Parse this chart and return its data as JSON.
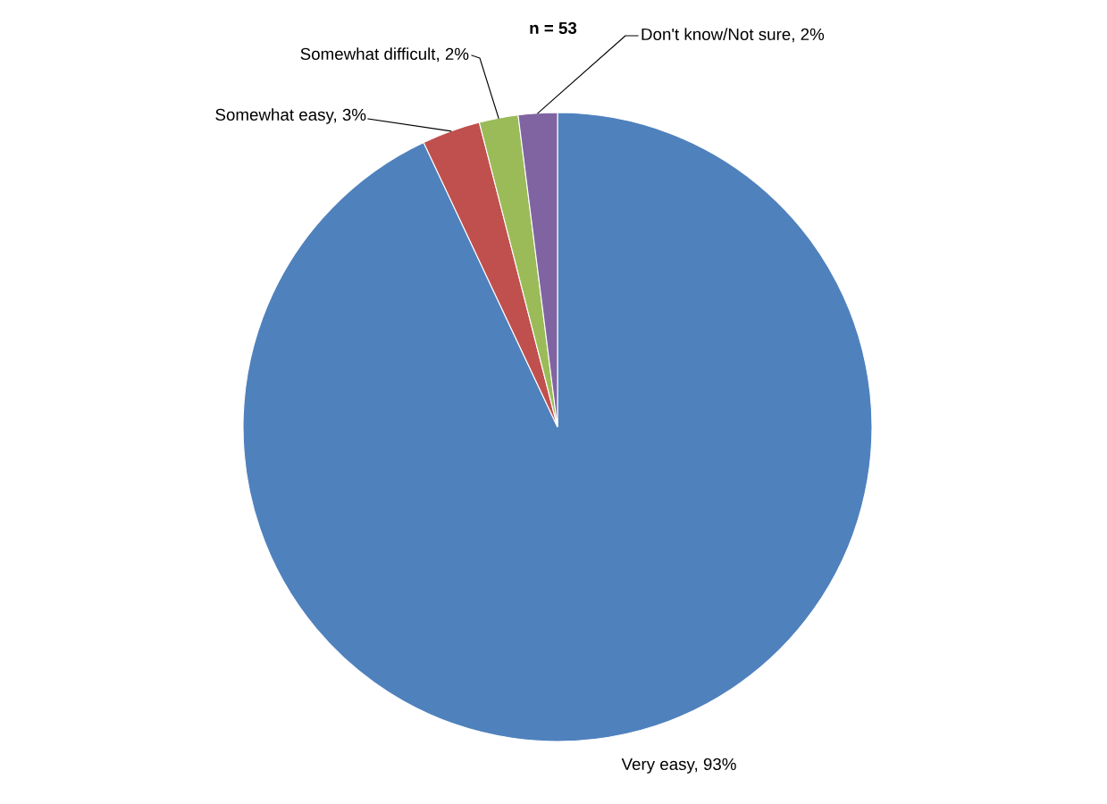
{
  "chart_data": {
    "type": "pie",
    "title": "n = 53",
    "categories": [
      "Very easy",
      "Somewhat easy",
      "Somewhat difficult",
      "Don't know/Not sure"
    ],
    "values": [
      93,
      3,
      2,
      2
    ],
    "colors": [
      "#4f81bd",
      "#c0504d",
      "#9bbb59",
      "#8064a2"
    ],
    "value_labels": [
      "93%",
      "3%",
      "2%",
      "2%"
    ],
    "legend": false
  }
}
